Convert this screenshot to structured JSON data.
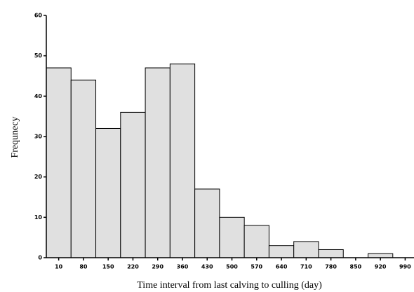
{
  "chart_data": {
    "type": "histogram",
    "xlabel": "Time interval from last calving to culling (day)",
    "ylabel": "Frequnecy",
    "bins": [
      -25,
      45,
      115,
      185,
      255,
      325,
      395,
      465,
      535,
      605,
      675,
      745,
      815,
      885,
      955
    ],
    "values": [
      47,
      44,
      32,
      36,
      47,
      48,
      17,
      10,
      8,
      3,
      4,
      2,
      0,
      1
    ],
    "color": "#e0e0e0",
    "xlim": [
      -25,
      1015
    ],
    "xticks": [
      10,
      80,
      150,
      220,
      290,
      360,
      430,
      500,
      570,
      640,
      710,
      780,
      850,
      920,
      990
    ],
    "ylim": [
      0,
      60
    ],
    "yticks": [
      0,
      10,
      20,
      30,
      40,
      50,
      60
    ]
  }
}
